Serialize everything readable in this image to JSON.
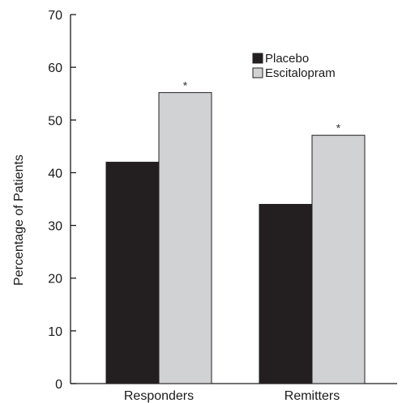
{
  "chart_data": {
    "type": "bar",
    "title": "",
    "xlabel": "",
    "ylabel": "Percentage of Patients",
    "ylim": [
      0,
      70
    ],
    "yticks": [
      0,
      10,
      20,
      30,
      40,
      50,
      60,
      70
    ],
    "categories": [
      "Responders",
      "Remitters"
    ],
    "series": [
      {
        "name": "Placebo",
        "values": [
          42,
          34
        ],
        "color": "#231f20"
      },
      {
        "name": "Escitalopram",
        "values": [
          55.2,
          47.1
        ],
        "color": "#d0d2d3"
      }
    ],
    "annotations": [
      {
        "category": "Responders",
        "series": "Escitalopram",
        "text": "*"
      },
      {
        "category": "Remitters",
        "series": "Escitalopram",
        "text": "*"
      }
    ],
    "grid": false,
    "legend_position": "top-right"
  }
}
